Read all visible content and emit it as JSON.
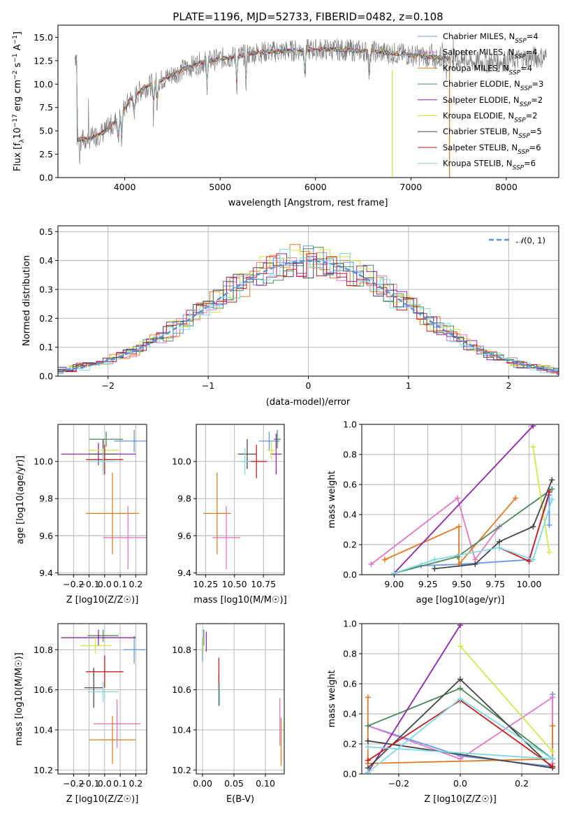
{
  "colors": {
    "chabrier_miles": "#6495ED",
    "salpeter_miles": "#E377C2",
    "kroupa_miles": "#E07B24",
    "chabrier_elodie": "#4B8A5A",
    "salpeter_elodie": "#8E24AA",
    "kroupa_elodie": "#CDE84A",
    "chabrier_stelib": "#454545",
    "salpeter_stelib": "#C81E1E",
    "kroupa_stelib": "#7FD9E5",
    "normal": "#5B8FD6",
    "data": "#808080"
  },
  "chart_data": [
    {
      "id": "spectrum",
      "type": "line",
      "title": "PLATE=1196, MJD=52733, FIBERID=0482, z=0.108",
      "xlabel": "wavelength [Angstrom, rest frame]",
      "ylabel": "Flux [fλ10⁻¹⁷ erg cm⁻² s⁻¹ A⁻¹]",
      "xlim": [
        3300,
        8550
      ],
      "ylim": [
        0,
        16.3
      ],
      "xticks": [
        4000,
        5000,
        6000,
        7000,
        8000
      ],
      "yticks": [
        0.0,
        2.5,
        5.0,
        7.5,
        10.0,
        12.5,
        15.0
      ],
      "grid": false,
      "legend_position": "top-right",
      "continuum": [
        [
          3500,
          4.0
        ],
        [
          3650,
          4.2
        ],
        [
          3800,
          5.0
        ],
        [
          3950,
          6.5
        ],
        [
          4050,
          8.3
        ],
        [
          4200,
          9.6
        ],
        [
          4400,
          10.5
        ],
        [
          4600,
          11.5
        ],
        [
          4800,
          12.3
        ],
        [
          5000,
          12.7
        ],
        [
          5200,
          13.0
        ],
        [
          5400,
          13.4
        ],
        [
          5600,
          13.5
        ],
        [
          5800,
          13.6
        ],
        [
          6000,
          13.7
        ],
        [
          6200,
          13.7
        ],
        [
          6400,
          13.6
        ],
        [
          6600,
          13.5
        ],
        [
          6800,
          13.3
        ],
        [
          7000,
          13.1
        ],
        [
          7200,
          12.9
        ],
        [
          7400,
          12.7
        ],
        [
          7600,
          12.4
        ],
        [
          7800,
          12.3
        ],
        [
          8000,
          12.5
        ],
        [
          8200,
          12.8
        ],
        [
          8400,
          12.9
        ]
      ],
      "series": [
        {
          "name": "Chabrier MILES, N_SSP=4",
          "key": "chabrier_miles"
        },
        {
          "name": "Salpeter MILES, N_SSP=4",
          "key": "salpeter_miles"
        },
        {
          "name": "Kroupa MILES, N_SSP=4",
          "key": "kroupa_miles"
        },
        {
          "name": "Chabrier ELODIE, N_SSP=3",
          "key": "chabrier_elodie"
        },
        {
          "name": "Salpeter ELODIE, N_SSP=2",
          "key": "salpeter_elodie"
        },
        {
          "name": "Kroupa ELODIE, N_SSP=2",
          "key": "kroupa_elodie"
        },
        {
          "name": "Chabrier STELIB, N_SSP=5",
          "key": "chabrier_stelib"
        },
        {
          "name": "Salpeter STELIB, N_SSP=6",
          "key": "salpeter_stelib"
        },
        {
          "name": "Kroupa STELIB, N_SSP=6",
          "key": "kroupa_stelib"
        }
      ]
    },
    {
      "id": "residuals",
      "type": "histogram",
      "xlabel": "(data-model)/error",
      "ylabel": "Normed distribution",
      "xlim": [
        -2.5,
        2.5
      ],
      "ylim": [
        0,
        0.52
      ],
      "xticks": [
        -2,
        -1,
        0,
        1,
        2
      ],
      "yticks": [
        0.0,
        0.1,
        0.2,
        0.3,
        0.4,
        0.5
      ],
      "grid": true,
      "legend": "N(0,1)",
      "legend_position": "top-right"
    },
    {
      "id": "age_vs_Z",
      "type": "errorbar",
      "xlabel": "Z [log10(Z/Z☉)]",
      "ylabel": "age  [log10(age/yr)]",
      "xlim": [
        -0.3,
        0.27
      ],
      "ylim": [
        9.39,
        10.2
      ],
      "xticks": [
        -0.2,
        -0.1,
        0.0,
        0.1,
        0.2
      ],
      "yticks": [
        9.4,
        9.6,
        9.8,
        10.0
      ],
      "grid": true,
      "points": [
        {
          "key": "chabrier_miles",
          "x": 0.19,
          "xerr": 0.13,
          "y": 10.11,
          "yerr": 0.06
        },
        {
          "key": "salpeter_miles",
          "x": 0.15,
          "xerr": 0.16,
          "y": 9.59,
          "yerr": 0.17
        },
        {
          "key": "kroupa_miles",
          "x": 0.05,
          "xerr": 0.17,
          "y": 9.72,
          "yerr": 0.22
        },
        {
          "key": "chabrier_elodie",
          "x": 0.01,
          "xerr": 0.11,
          "y": 10.12,
          "yerr": 0.04
        },
        {
          "key": "salpeter_elodie",
          "x": -0.04,
          "xerr": 0.24,
          "y": 10.04,
          "yerr": 0.06
        },
        {
          "key": "kroupa_elodie",
          "x": -0.01,
          "xerr": 0.1,
          "y": 10.06,
          "yerr": 0.05
        },
        {
          "key": "chabrier_stelib",
          "x": -0.01,
          "xerr": 0.09,
          "y": 10.04,
          "yerr": 0.08
        },
        {
          "key": "salpeter_stelib",
          "x": 0.0,
          "xerr": 0.12,
          "y": 10.01,
          "yerr": 0.08
        },
        {
          "key": "kroupa_stelib",
          "x": -0.01,
          "xerr": 0.08,
          "y": 10.0,
          "yerr": 0.07
        }
      ]
    },
    {
      "id": "age_vs_mass",
      "type": "errorbar",
      "xlabel": "mass [log10(M/M☉)]",
      "xlim": [
        10.17,
        10.93
      ],
      "ylim": [
        9.39,
        10.2
      ],
      "xticks": [
        10.25,
        10.5,
        10.75
      ],
      "yticks": [
        9.4,
        9.6,
        9.8,
        10.0
      ],
      "grid": true,
      "points": [
        {
          "key": "chabrier_miles",
          "x": 10.8,
          "xerr": 0.09,
          "y": 10.11,
          "yerr": 0.05
        },
        {
          "key": "salpeter_miles",
          "x": 10.43,
          "xerr": 0.12,
          "y": 9.59,
          "yerr": 0.17
        },
        {
          "key": "kroupa_miles",
          "x": 10.35,
          "xerr": 0.12,
          "y": 9.72,
          "yerr": 0.22
        },
        {
          "key": "chabrier_elodie",
          "x": 10.87,
          "xerr": 0.03,
          "y": 10.12,
          "yerr": 0.05
        },
        {
          "key": "salpeter_elodie",
          "x": 10.86,
          "xerr": 0.05,
          "y": 10.04,
          "yerr": 0.11
        },
        {
          "key": "kroupa_elodie",
          "x": 10.82,
          "xerr": 0.04,
          "y": 10.06,
          "yerr": 0.05
        },
        {
          "key": "chabrier_stelib",
          "x": 10.61,
          "xerr": 0.08,
          "y": 10.04,
          "yerr": 0.08
        },
        {
          "key": "salpeter_stelib",
          "x": 10.69,
          "xerr": 0.09,
          "y": 10.0,
          "yerr": 0.09
        },
        {
          "key": "kroupa_stelib",
          "x": 10.59,
          "xerr": 0.05,
          "y": 10.0,
          "yerr": 0.07
        }
      ]
    },
    {
      "id": "weight_vs_age",
      "type": "line",
      "xlabel": "age  [log10(age/yr)]",
      "ylabel": "mass weight",
      "xlim": [
        8.76,
        10.22
      ],
      "ylim": [
        0,
        1.0
      ],
      "xticks": [
        9.0,
        9.25,
        9.5,
        9.75,
        10.0
      ],
      "yticks": [
        0.0,
        0.2,
        0.4,
        0.6,
        0.8,
        1.0
      ],
      "grid": true,
      "series": [
        {
          "key": "chabrier_miles",
          "points": [
            [
              9.0,
              0.01
            ],
            [
              9.2,
              0.06
            ],
            [
              9.5,
              0.07
            ],
            [
              10.0,
              0.1
            ],
            [
              10.15,
              0.53
            ],
            [
              10.15,
              0.33
            ]
          ]
        },
        {
          "key": "salpeter_miles",
          "points": [
            [
              8.83,
              0.07
            ],
            [
              9.47,
              0.51
            ],
            [
              9.6,
              0.1
            ],
            [
              9.78,
              0.32
            ]
          ]
        },
        {
          "key": "kroupa_miles",
          "points": [
            [
              8.93,
              0.1
            ],
            [
              9.48,
              0.32
            ],
            [
              9.48,
              0.07
            ],
            [
              9.9,
              0.51
            ]
          ]
        },
        {
          "key": "chabrier_elodie",
          "points": [
            [
              9.0,
              0.01
            ],
            [
              9.47,
              0.12
            ],
            [
              10.17,
              0.57
            ]
          ]
        },
        {
          "key": "salpeter_elodie",
          "points": [
            [
              9.0,
              0.01
            ],
            [
              10.03,
              0.99
            ]
          ]
        },
        {
          "key": "kroupa_elodie",
          "points": [
            [
              10.03,
              0.85
            ],
            [
              10.15,
              0.15
            ]
          ]
        },
        {
          "key": "chabrier_stelib",
          "points": [
            [
              9.3,
              0.04
            ],
            [
              9.6,
              0.07
            ],
            [
              9.78,
              0.22
            ],
            [
              10.03,
              0.32
            ],
            [
              10.17,
              0.63
            ]
          ]
        },
        {
          "key": "salpeter_stelib",
          "points": [
            [
              9.78,
              0.18
            ],
            [
              10.0,
              0.09
            ],
            [
              10.15,
              0.55
            ]
          ]
        },
        {
          "key": "kroupa_stelib",
          "points": [
            [
              9.0,
              0.01
            ],
            [
              9.3,
              0.1
            ],
            [
              9.78,
              0.18
            ],
            [
              10.03,
              0.1
            ],
            [
              10.17,
              0.5
            ]
          ]
        }
      ]
    },
    {
      "id": "mass_vs_Z",
      "type": "errorbar",
      "xlabel": "Z [log10(Z/Z☉)]",
      "ylabel": "mass [log10(M/M☉)]",
      "xlim": [
        -0.3,
        0.27
      ],
      "ylim": [
        10.18,
        10.93
      ],
      "xticks": [
        -0.2,
        -0.1,
        0.0,
        0.1,
        0.2
      ],
      "yticks": [
        10.2,
        10.4,
        10.6,
        10.8
      ],
      "grid": true,
      "points": [
        {
          "key": "chabrier_miles",
          "x": 0.19,
          "xerr": 0.07,
          "y": 10.8,
          "yerr": 0.07
        },
        {
          "key": "salpeter_miles",
          "x": 0.08,
          "xerr": 0.15,
          "y": 10.43,
          "yerr": 0.12
        },
        {
          "key": "kroupa_miles",
          "x": 0.05,
          "xerr": 0.15,
          "y": 10.35,
          "yerr": 0.12
        },
        {
          "key": "chabrier_elodie",
          "x": -0.01,
          "xerr": 0.1,
          "y": 10.87,
          "yerr": 0.03
        },
        {
          "key": "salpeter_elodie",
          "x": -0.04,
          "xerr": 0.24,
          "y": 10.86,
          "yerr": 0.04
        },
        {
          "key": "kroupa_elodie",
          "x": -0.06,
          "xerr": 0.1,
          "y": 10.82,
          "yerr": 0.04
        },
        {
          "key": "chabrier_stelib",
          "x": -0.07,
          "xerr": 0.06,
          "y": 10.61,
          "yerr": 0.1
        },
        {
          "key": "salpeter_stelib",
          "x": 0.0,
          "xerr": 0.12,
          "y": 10.69,
          "yerr": 0.08
        },
        {
          "key": "kroupa_stelib",
          "x": -0.01,
          "xerr": 0.1,
          "y": 10.59,
          "yerr": 0.05
        }
      ]
    },
    {
      "id": "mass_vs_ebv",
      "type": "errorbar",
      "xlabel": "E(B-V)",
      "xlim": [
        -0.01,
        0.13
      ],
      "ylim": [
        10.18,
        10.93
      ],
      "xticks": [
        0.0,
        0.05,
        0.1
      ],
      "yticks": [
        10.2,
        10.4,
        10.6,
        10.8
      ],
      "grid": true,
      "points": [
        {
          "key": "chabrier_miles",
          "x": 0.0,
          "y": 10.8,
          "yerr": 0.06
        },
        {
          "key": "salpeter_miles",
          "x": 0.123,
          "y": 10.44,
          "yerr": 0.12
        },
        {
          "key": "kroupa_miles",
          "x": 0.125,
          "y": 10.34,
          "yerr": 0.12
        },
        {
          "key": "chabrier_elodie",
          "x": 0.002,
          "y": 10.86,
          "yerr": 0.04
        },
        {
          "key": "salpeter_elodie",
          "x": 0.006,
          "y": 10.84,
          "yerr": 0.05
        },
        {
          "key": "kroupa_elodie",
          "x": 0.001,
          "y": 10.82,
          "yerr": 0.04
        },
        {
          "key": "chabrier_stelib",
          "x": 0.026,
          "y": 10.6,
          "yerr": 0.08
        },
        {
          "key": "salpeter_stelib",
          "x": 0.026,
          "y": 10.68,
          "yerr": 0.08
        },
        {
          "key": "kroupa_stelib",
          "x": 0.027,
          "y": 10.58,
          "yerr": 0.06
        }
      ]
    },
    {
      "id": "weight_vs_Z",
      "type": "line",
      "xlabel": "Z [log10(Z/Z☉)]",
      "ylabel": "mass weight",
      "xlim": [
        -0.32,
        0.32
      ],
      "ylim": [
        0,
        1.0
      ],
      "xticks": [
        -0.2,
        0.0,
        0.2
      ],
      "yticks": [
        0.0,
        0.2,
        0.4,
        0.6,
        0.8,
        1.0
      ],
      "grid": true,
      "series": [
        {
          "key": "chabrier_miles",
          "points": [
            [
              -0.3,
              0.32
            ],
            [
              0.0,
              0.12
            ],
            [
              0.3,
              0.05
            ],
            [
              0.3,
              0.53
            ]
          ]
        },
        {
          "key": "salpeter_miles",
          "points": [
            [
              -0.3,
              0.32
            ],
            [
              0.0,
              0.1
            ],
            [
              0.3,
              0.51
            ],
            [
              0.3,
              0.07
            ]
          ]
        },
        {
          "key": "kroupa_miles",
          "points": [
            [
              -0.3,
              0.51
            ],
            [
              -0.3,
              0.07
            ],
            [
              0.3,
              0.1
            ],
            [
              0.3,
              0.32
            ]
          ]
        },
        {
          "key": "chabrier_elodie",
          "points": [
            [
              -0.3,
              0.32
            ],
            [
              0.0,
              0.57
            ],
            [
              0.3,
              0.1
            ]
          ]
        },
        {
          "key": "salpeter_elodie",
          "points": [
            [
              -0.3,
              0.01
            ],
            [
              0.0,
              0.99
            ]
          ]
        },
        {
          "key": "kroupa_elodie",
          "points": [
            [
              0.0,
              0.85
            ],
            [
              0.3,
              0.15
            ]
          ]
        },
        {
          "key": "chabrier_stelib",
          "points": [
            [
              -0.3,
              0.04
            ],
            [
              0.0,
              0.63
            ],
            [
              0.3,
              0.04
            ],
            [
              -0.3,
              0.22
            ]
          ]
        },
        {
          "key": "salpeter_stelib",
          "points": [
            [
              -0.3,
              0.09
            ],
            [
              0.0,
              0.49
            ],
            [
              0.3,
              0.05
            ]
          ]
        },
        {
          "key": "kroupa_stelib",
          "points": [
            [
              -0.3,
              0.01
            ],
            [
              0.0,
              0.5
            ],
            [
              0.3,
              0.1
            ],
            [
              -0.3,
              0.18
            ]
          ]
        }
      ]
    }
  ]
}
